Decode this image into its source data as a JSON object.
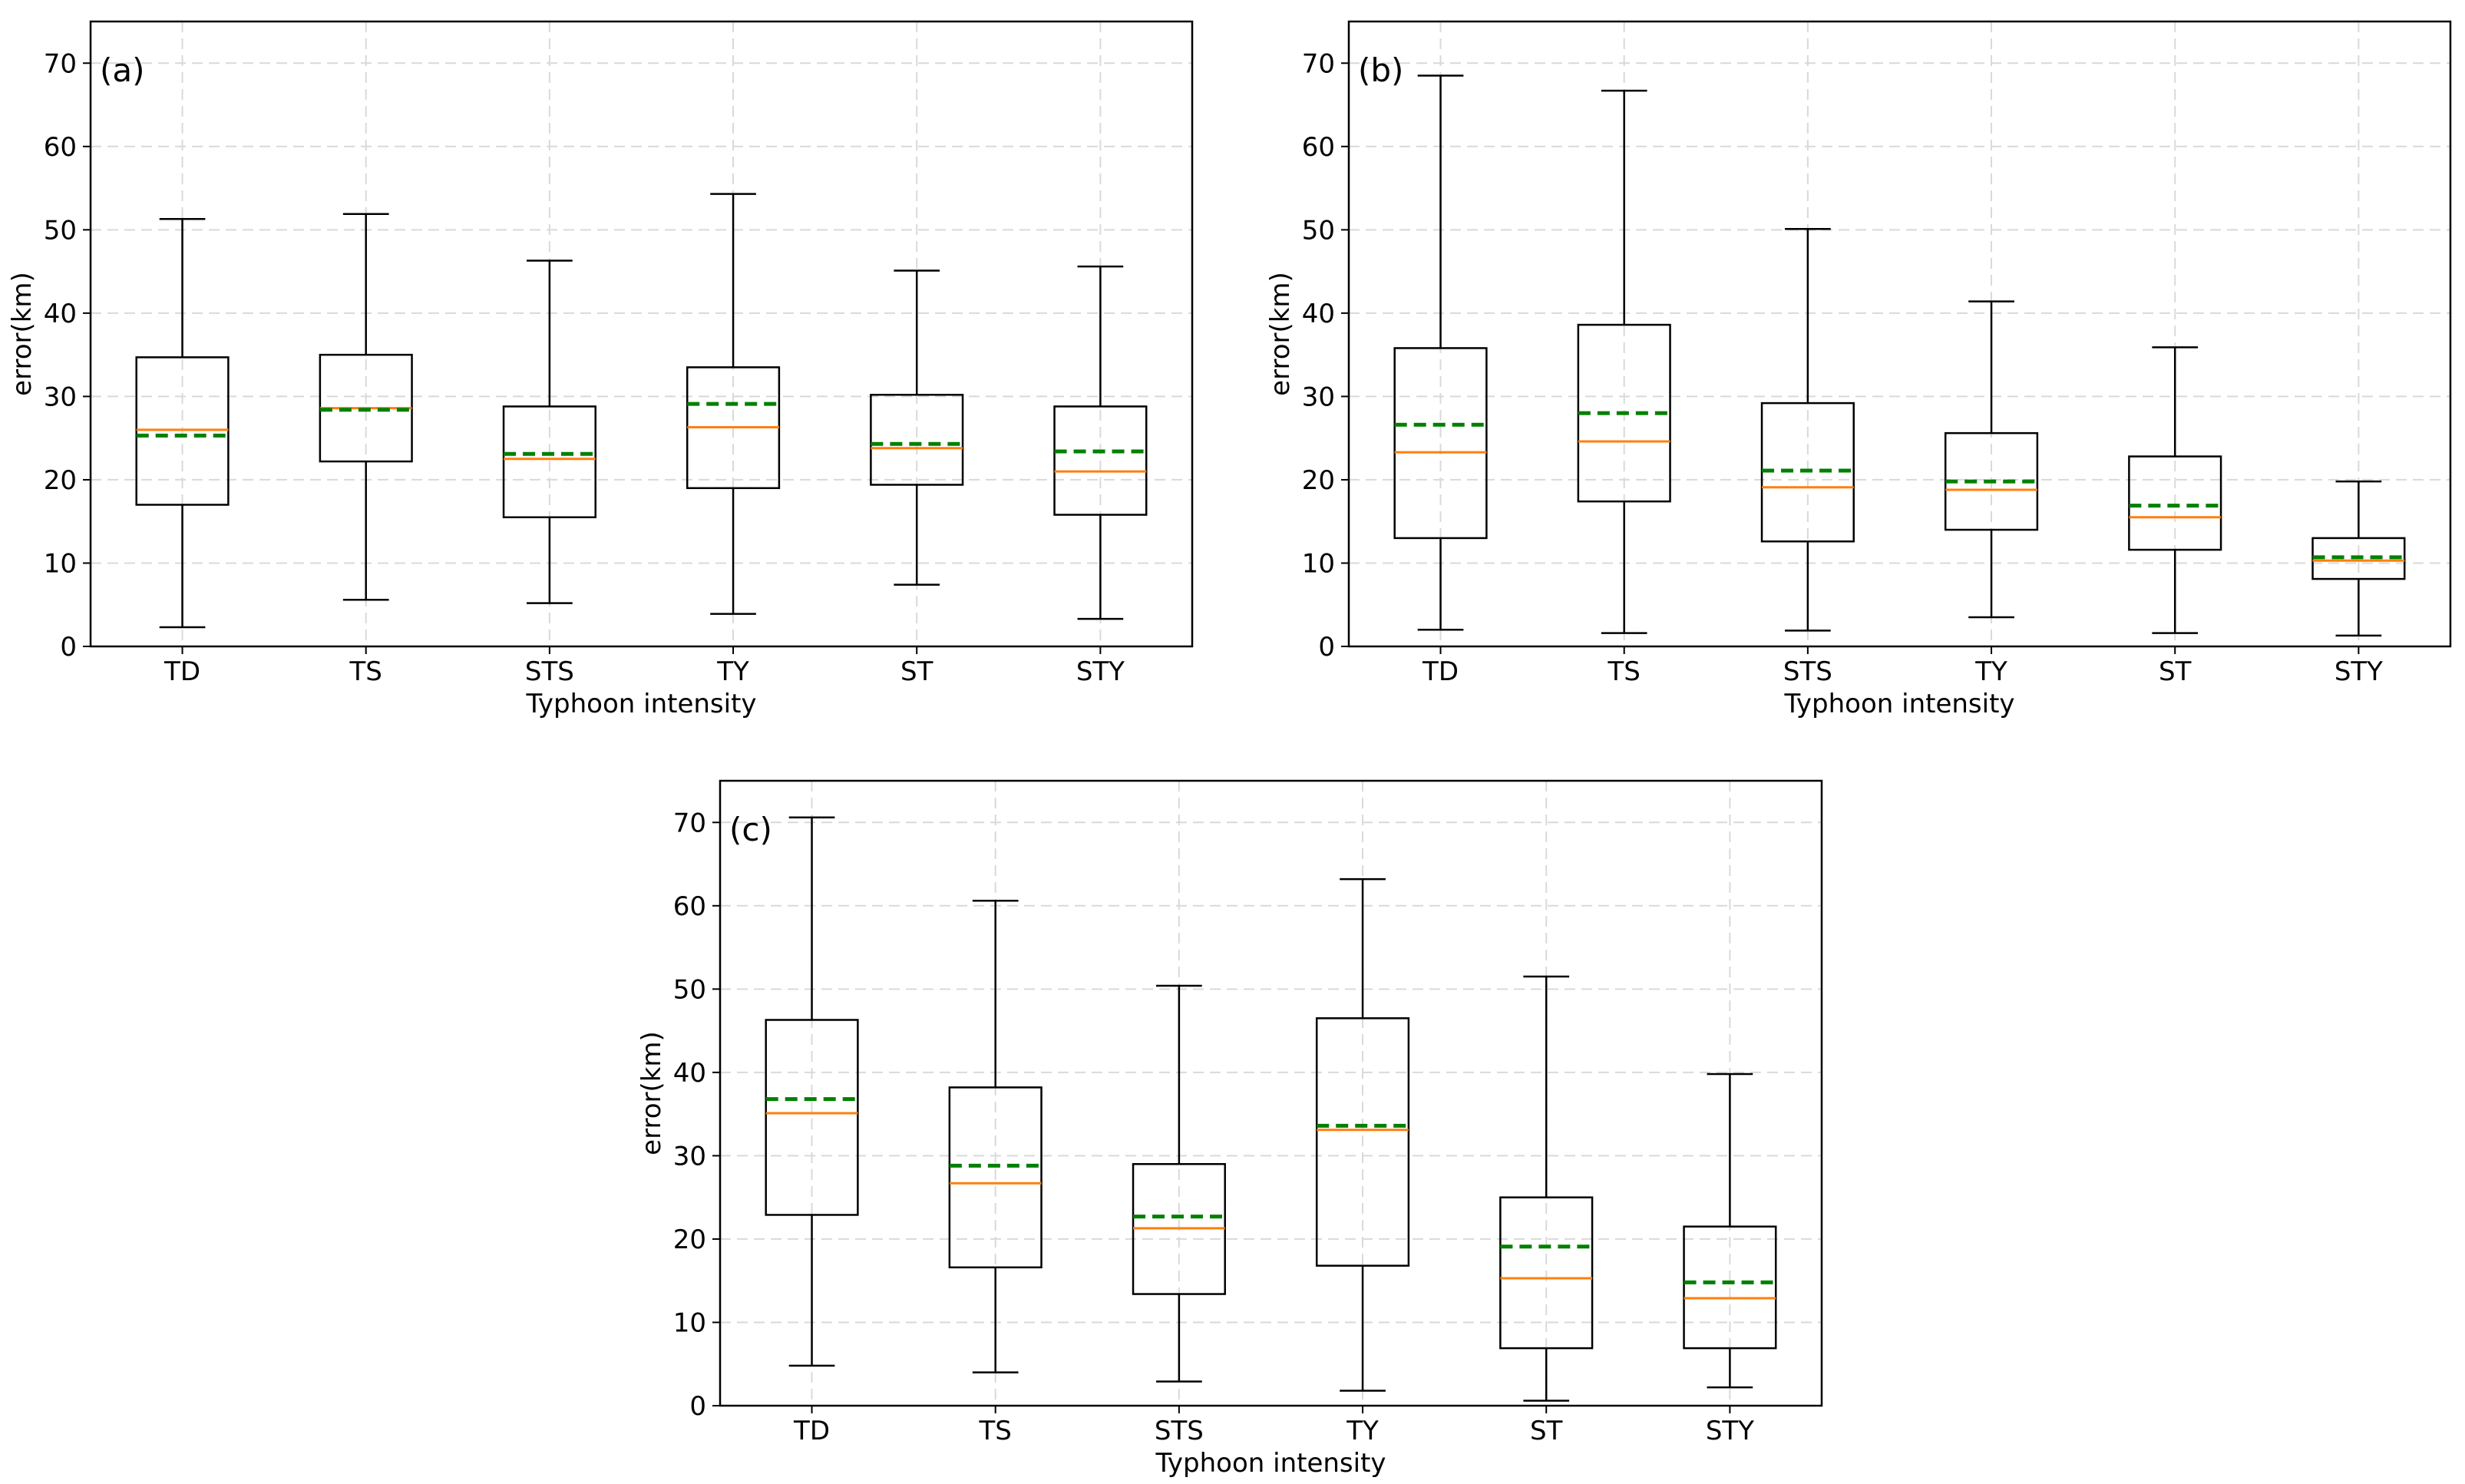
{
  "chart_data": [
    {
      "type": "box",
      "panel_label": "(a)",
      "categories": [
        "TD",
        "TS",
        "STS",
        "TY",
        "ST",
        "STY"
      ],
      "xlabel": "Typhoon intensity",
      "ylabel": "error(km)",
      "ylim": [
        0,
        75
      ],
      "yticks": [
        "0",
        "10",
        "20",
        "30",
        "40",
        "50",
        "60",
        "70"
      ],
      "grid": true,
      "boxes": [
        {
          "whisker_low": 2.3,
          "q1": 17.0,
          "median": 26.0,
          "mean": 25.3,
          "q3": 34.7,
          "whisker_high": 51.3
        },
        {
          "whisker_low": 5.6,
          "q1": 22.2,
          "median": 28.6,
          "mean": 28.4,
          "q3": 35.0,
          "whisker_high": 51.9
        },
        {
          "whisker_low": 5.2,
          "q1": 15.5,
          "median": 22.5,
          "mean": 23.1,
          "q3": 28.8,
          "whisker_high": 46.3
        },
        {
          "whisker_low": 3.9,
          "q1": 19.0,
          "median": 26.3,
          "mean": 29.1,
          "q3": 33.5,
          "whisker_high": 54.3
        },
        {
          "whisker_low": 7.4,
          "q1": 19.4,
          "median": 23.8,
          "mean": 24.3,
          "q3": 30.2,
          "whisker_high": 45.1
        },
        {
          "whisker_low": 3.3,
          "q1": 15.8,
          "median": 21.0,
          "mean": 23.4,
          "q3": 28.8,
          "whisker_high": 45.6
        }
      ]
    },
    {
      "type": "box",
      "panel_label": "(b)",
      "categories": [
        "TD",
        "TS",
        "STS",
        "TY",
        "ST",
        "STY"
      ],
      "xlabel": "Typhoon intensity",
      "ylabel": "error(km)",
      "ylim": [
        0,
        75
      ],
      "yticks": [
        "0",
        "10",
        "20",
        "30",
        "40",
        "50",
        "60",
        "70"
      ],
      "grid": true,
      "boxes": [
        {
          "whisker_low": 2.0,
          "q1": 13.0,
          "median": 23.3,
          "mean": 26.6,
          "q3": 35.8,
          "whisker_high": 68.5
        },
        {
          "whisker_low": 1.6,
          "q1": 17.4,
          "median": 24.6,
          "mean": 28.0,
          "q3": 38.6,
          "whisker_high": 66.7
        },
        {
          "whisker_low": 1.9,
          "q1": 12.6,
          "median": 19.1,
          "mean": 21.1,
          "q3": 29.2,
          "whisker_high": 50.1
        },
        {
          "whisker_low": 3.5,
          "q1": 14.0,
          "median": 18.8,
          "mean": 19.8,
          "q3": 25.6,
          "whisker_high": 41.4
        },
        {
          "whisker_low": 1.6,
          "q1": 11.6,
          "median": 15.5,
          "mean": 16.9,
          "q3": 22.8,
          "whisker_high": 35.9
        },
        {
          "whisker_low": 1.3,
          "q1": 8.1,
          "median": 10.3,
          "mean": 10.7,
          "q3": 13.0,
          "whisker_high": 19.8
        }
      ]
    },
    {
      "type": "box",
      "panel_label": "(c)",
      "categories": [
        "TD",
        "TS",
        "STS",
        "TY",
        "ST",
        "STY"
      ],
      "xlabel": "Typhoon intensity",
      "ylabel": "error(km)",
      "ylim": [
        0,
        75
      ],
      "yticks": [
        "0",
        "10",
        "20",
        "30",
        "40",
        "50",
        "60",
        "70"
      ],
      "grid": true,
      "boxes": [
        {
          "whisker_low": 4.8,
          "q1": 22.9,
          "median": 35.1,
          "mean": 36.8,
          "q3": 46.3,
          "whisker_high": 70.6
        },
        {
          "whisker_low": 4.0,
          "q1": 16.6,
          "median": 26.7,
          "mean": 28.8,
          "q3": 38.2,
          "whisker_high": 60.6
        },
        {
          "whisker_low": 2.9,
          "q1": 13.4,
          "median": 21.3,
          "mean": 22.7,
          "q3": 29.0,
          "whisker_high": 50.4
        },
        {
          "whisker_low": 1.8,
          "q1": 16.8,
          "median": 33.1,
          "mean": 33.6,
          "q3": 46.5,
          "whisker_high": 63.2
        },
        {
          "whisker_low": 0.6,
          "q1": 6.9,
          "median": 15.3,
          "mean": 19.1,
          "q3": 25.0,
          "whisker_high": 51.5
        },
        {
          "whisker_low": 2.2,
          "q1": 6.9,
          "median": 12.9,
          "mean": 14.8,
          "q3": 21.5,
          "whisker_high": 39.8
        }
      ]
    }
  ],
  "colors": {
    "median": "#ff7f0e",
    "mean": "#008000",
    "box": "#000000",
    "grid": "#d9d9d9"
  }
}
